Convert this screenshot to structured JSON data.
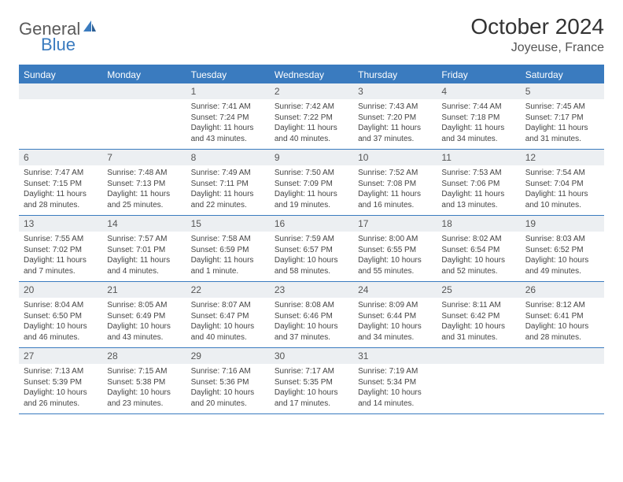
{
  "logo": {
    "part1": "General",
    "part2": "Blue"
  },
  "title": "October 2024",
  "location": "Joyeuse, France",
  "colors": {
    "accent": "#3a7bbf",
    "header_text": "#ffffff",
    "daynum_bg": "#eceff2",
    "body_text": "#444444",
    "title_text": "#333333"
  },
  "weekdays": [
    "Sunday",
    "Monday",
    "Tuesday",
    "Wednesday",
    "Thursday",
    "Friday",
    "Saturday"
  ],
  "weeks": [
    [
      null,
      null,
      {
        "n": "1",
        "sunrise": "Sunrise: 7:41 AM",
        "sunset": "Sunset: 7:24 PM",
        "daylight": "Daylight: 11 hours and 43 minutes."
      },
      {
        "n": "2",
        "sunrise": "Sunrise: 7:42 AM",
        "sunset": "Sunset: 7:22 PM",
        "daylight": "Daylight: 11 hours and 40 minutes."
      },
      {
        "n": "3",
        "sunrise": "Sunrise: 7:43 AM",
        "sunset": "Sunset: 7:20 PM",
        "daylight": "Daylight: 11 hours and 37 minutes."
      },
      {
        "n": "4",
        "sunrise": "Sunrise: 7:44 AM",
        "sunset": "Sunset: 7:18 PM",
        "daylight": "Daylight: 11 hours and 34 minutes."
      },
      {
        "n": "5",
        "sunrise": "Sunrise: 7:45 AM",
        "sunset": "Sunset: 7:17 PM",
        "daylight": "Daylight: 11 hours and 31 minutes."
      }
    ],
    [
      {
        "n": "6",
        "sunrise": "Sunrise: 7:47 AM",
        "sunset": "Sunset: 7:15 PM",
        "daylight": "Daylight: 11 hours and 28 minutes."
      },
      {
        "n": "7",
        "sunrise": "Sunrise: 7:48 AM",
        "sunset": "Sunset: 7:13 PM",
        "daylight": "Daylight: 11 hours and 25 minutes."
      },
      {
        "n": "8",
        "sunrise": "Sunrise: 7:49 AM",
        "sunset": "Sunset: 7:11 PM",
        "daylight": "Daylight: 11 hours and 22 minutes."
      },
      {
        "n": "9",
        "sunrise": "Sunrise: 7:50 AM",
        "sunset": "Sunset: 7:09 PM",
        "daylight": "Daylight: 11 hours and 19 minutes."
      },
      {
        "n": "10",
        "sunrise": "Sunrise: 7:52 AM",
        "sunset": "Sunset: 7:08 PM",
        "daylight": "Daylight: 11 hours and 16 minutes."
      },
      {
        "n": "11",
        "sunrise": "Sunrise: 7:53 AM",
        "sunset": "Sunset: 7:06 PM",
        "daylight": "Daylight: 11 hours and 13 minutes."
      },
      {
        "n": "12",
        "sunrise": "Sunrise: 7:54 AM",
        "sunset": "Sunset: 7:04 PM",
        "daylight": "Daylight: 11 hours and 10 minutes."
      }
    ],
    [
      {
        "n": "13",
        "sunrise": "Sunrise: 7:55 AM",
        "sunset": "Sunset: 7:02 PM",
        "daylight": "Daylight: 11 hours and 7 minutes."
      },
      {
        "n": "14",
        "sunrise": "Sunrise: 7:57 AM",
        "sunset": "Sunset: 7:01 PM",
        "daylight": "Daylight: 11 hours and 4 minutes."
      },
      {
        "n": "15",
        "sunrise": "Sunrise: 7:58 AM",
        "sunset": "Sunset: 6:59 PM",
        "daylight": "Daylight: 11 hours and 1 minute."
      },
      {
        "n": "16",
        "sunrise": "Sunrise: 7:59 AM",
        "sunset": "Sunset: 6:57 PM",
        "daylight": "Daylight: 10 hours and 58 minutes."
      },
      {
        "n": "17",
        "sunrise": "Sunrise: 8:00 AM",
        "sunset": "Sunset: 6:55 PM",
        "daylight": "Daylight: 10 hours and 55 minutes."
      },
      {
        "n": "18",
        "sunrise": "Sunrise: 8:02 AM",
        "sunset": "Sunset: 6:54 PM",
        "daylight": "Daylight: 10 hours and 52 minutes."
      },
      {
        "n": "19",
        "sunrise": "Sunrise: 8:03 AM",
        "sunset": "Sunset: 6:52 PM",
        "daylight": "Daylight: 10 hours and 49 minutes."
      }
    ],
    [
      {
        "n": "20",
        "sunrise": "Sunrise: 8:04 AM",
        "sunset": "Sunset: 6:50 PM",
        "daylight": "Daylight: 10 hours and 46 minutes."
      },
      {
        "n": "21",
        "sunrise": "Sunrise: 8:05 AM",
        "sunset": "Sunset: 6:49 PM",
        "daylight": "Daylight: 10 hours and 43 minutes."
      },
      {
        "n": "22",
        "sunrise": "Sunrise: 8:07 AM",
        "sunset": "Sunset: 6:47 PM",
        "daylight": "Daylight: 10 hours and 40 minutes."
      },
      {
        "n": "23",
        "sunrise": "Sunrise: 8:08 AM",
        "sunset": "Sunset: 6:46 PM",
        "daylight": "Daylight: 10 hours and 37 minutes."
      },
      {
        "n": "24",
        "sunrise": "Sunrise: 8:09 AM",
        "sunset": "Sunset: 6:44 PM",
        "daylight": "Daylight: 10 hours and 34 minutes."
      },
      {
        "n": "25",
        "sunrise": "Sunrise: 8:11 AM",
        "sunset": "Sunset: 6:42 PM",
        "daylight": "Daylight: 10 hours and 31 minutes."
      },
      {
        "n": "26",
        "sunrise": "Sunrise: 8:12 AM",
        "sunset": "Sunset: 6:41 PM",
        "daylight": "Daylight: 10 hours and 28 minutes."
      }
    ],
    [
      {
        "n": "27",
        "sunrise": "Sunrise: 7:13 AM",
        "sunset": "Sunset: 5:39 PM",
        "daylight": "Daylight: 10 hours and 26 minutes."
      },
      {
        "n": "28",
        "sunrise": "Sunrise: 7:15 AM",
        "sunset": "Sunset: 5:38 PM",
        "daylight": "Daylight: 10 hours and 23 minutes."
      },
      {
        "n": "29",
        "sunrise": "Sunrise: 7:16 AM",
        "sunset": "Sunset: 5:36 PM",
        "daylight": "Daylight: 10 hours and 20 minutes."
      },
      {
        "n": "30",
        "sunrise": "Sunrise: 7:17 AM",
        "sunset": "Sunset: 5:35 PM",
        "daylight": "Daylight: 10 hours and 17 minutes."
      },
      {
        "n": "31",
        "sunrise": "Sunrise: 7:19 AM",
        "sunset": "Sunset: 5:34 PM",
        "daylight": "Daylight: 10 hours and 14 minutes."
      },
      null,
      null
    ]
  ]
}
